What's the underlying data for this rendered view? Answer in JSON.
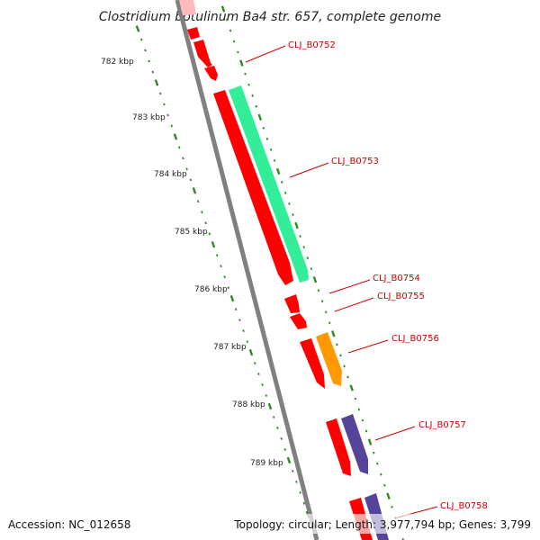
{
  "title": "Clostridium botulinum Ba4 str. 657, complete genome",
  "footer": {
    "accession": "Accession: NC_012658",
    "summary": "Topology: circular; Length: 3,977,794 bp; Genes: 3,799"
  },
  "colors": {
    "label": "#cc0000",
    "leader": "#cc0000",
    "backbone": "#808080",
    "tick_dots": "#2e8b22",
    "tick_major": "#2e8b22",
    "cds": "#ff0000",
    "rna": "#33ee99",
    "orange": "#ff9900",
    "purple": "#554499",
    "faded": "#ffbbbb"
  },
  "scale": {
    "unit": "kbp",
    "tick_labels": [
      "782 kbp",
      "783 kbp",
      "784 kbp",
      "785 kbp",
      "786 kbp",
      "787 kbp",
      "788 kbp",
      "789 kbp"
    ]
  },
  "genes": [
    {
      "id": "CLJ_B0752",
      "label": "CLJ_B0752"
    },
    {
      "id": "CLJ_B0753",
      "label": "CLJ_B0753"
    },
    {
      "id": "CLJ_B0754",
      "label": "CLJ_B0754"
    },
    {
      "id": "CLJ_B0755",
      "label": "CLJ_B0755"
    },
    {
      "id": "CLJ_B0756",
      "label": "CLJ_B0756"
    },
    {
      "id": "CLJ_B0757",
      "label": "CLJ_B0757"
    },
    {
      "id": "CLJ_B0758",
      "label": "CLJ_B0758"
    }
  ]
}
